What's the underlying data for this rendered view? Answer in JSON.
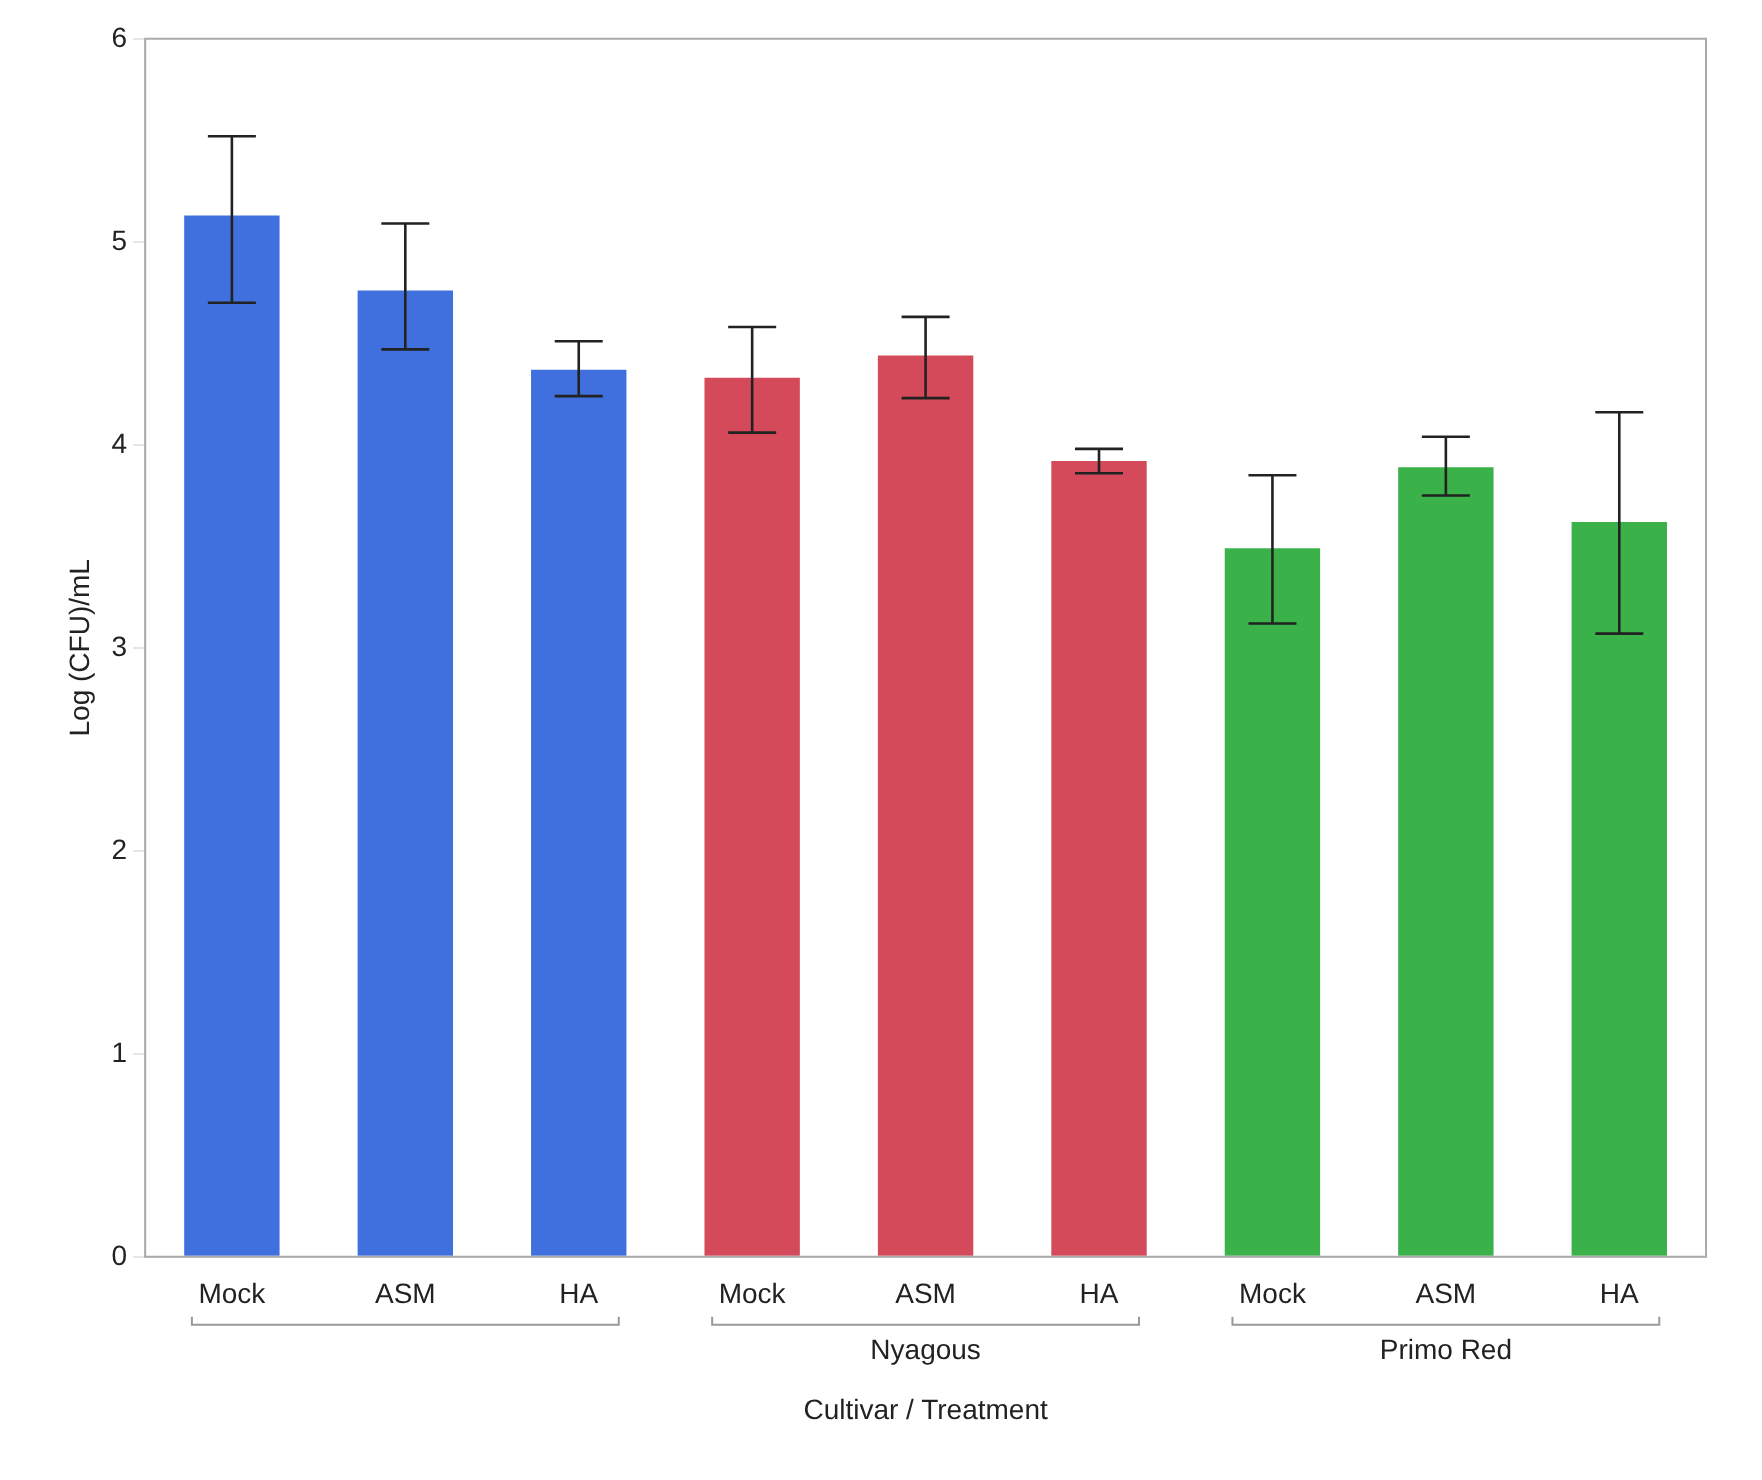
{
  "chart_data": {
    "type": "bar",
    "xlabel": "Cultivar / Treatment",
    "ylabel": "Log (CFU)/mL",
    "categories": [
      "Mock",
      "ASM",
      "HA",
      "Mock",
      "ASM",
      "HA",
      "Mock",
      "ASM",
      "HA"
    ],
    "values": [
      5.13,
      4.76,
      4.37,
      4.33,
      4.44,
      3.92,
      3.49,
      3.89,
      3.62
    ],
    "colors": [
      "#4070dd",
      "#4070dd",
      "#4070dd",
      "#d44a5a",
      "#d44a5a",
      "#d44a5a",
      "#3bb14a",
      "#3bb14a",
      "#3bb14a"
    ],
    "errors": [
      [
        4.7,
        5.52
      ],
      [
        4.47,
        5.09
      ],
      [
        4.24,
        4.51
      ],
      [
        4.06,
        4.58
      ],
      [
        4.23,
        4.63
      ],
      [
        3.86,
        3.98
      ],
      [
        3.12,
        3.85
      ],
      [
        3.75,
        4.04
      ],
      [
        3.07,
        4.16
      ]
    ],
    "annotations": [
      "Nyagous",
      "Primo Red"
    ],
    "ylim": [
      0,
      6
    ],
    "yticks": [
      0,
      1,
      2,
      3,
      4,
      5,
      6
    ],
    "grid": false,
    "legend": false
  }
}
